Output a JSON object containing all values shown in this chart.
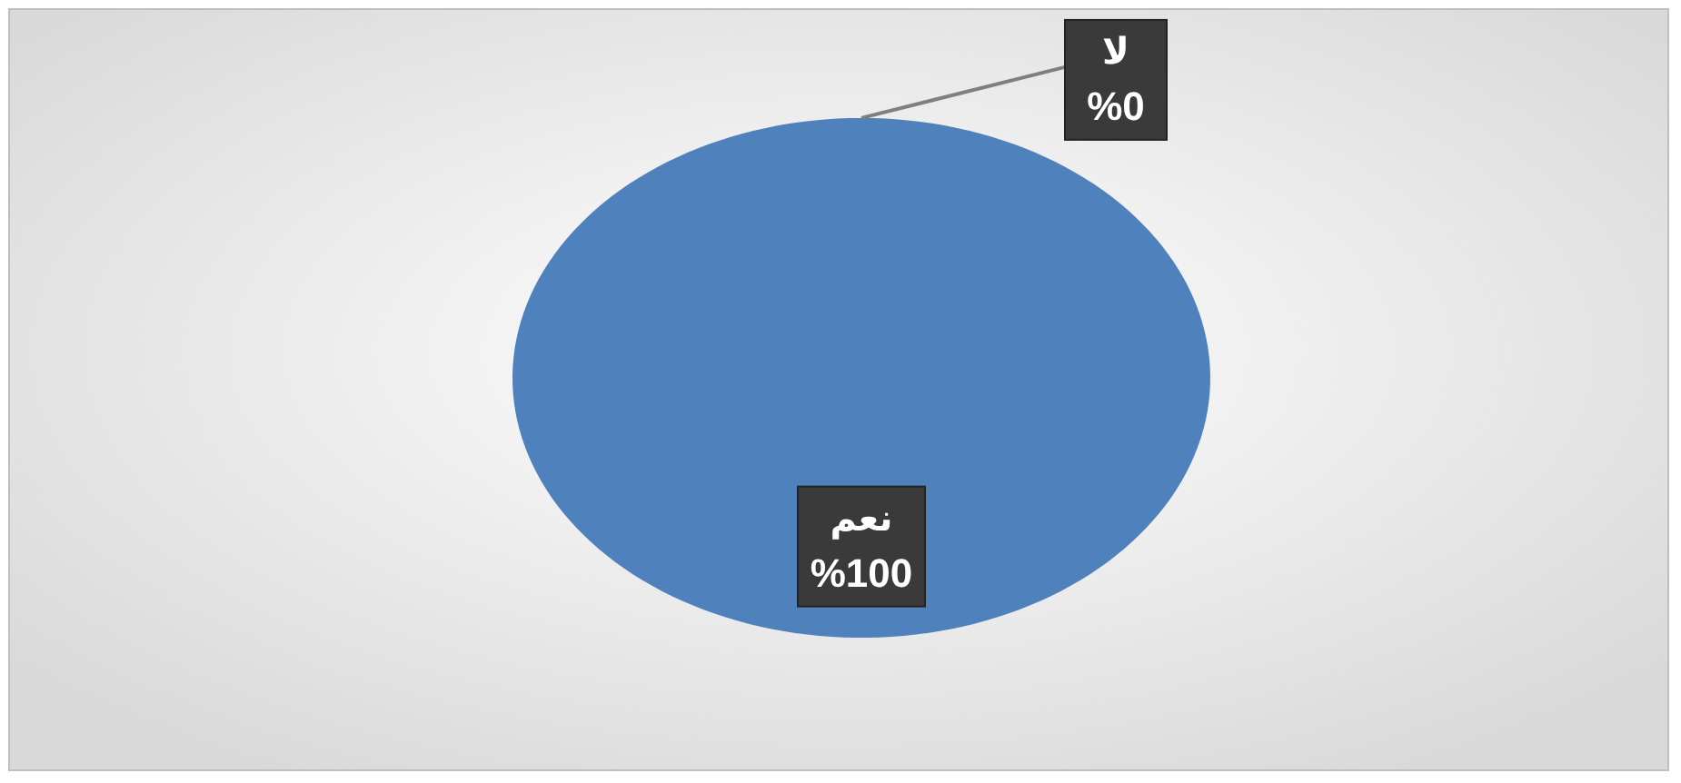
{
  "chart_data": {
    "type": "pie",
    "categories": [
      "نعم",
      "لا"
    ],
    "values": [
      100,
      0
    ],
    "colors": [
      "#4f81bd",
      "#c0504d"
    ],
    "value_labels": [
      "%100",
      "%0"
    ]
  }
}
